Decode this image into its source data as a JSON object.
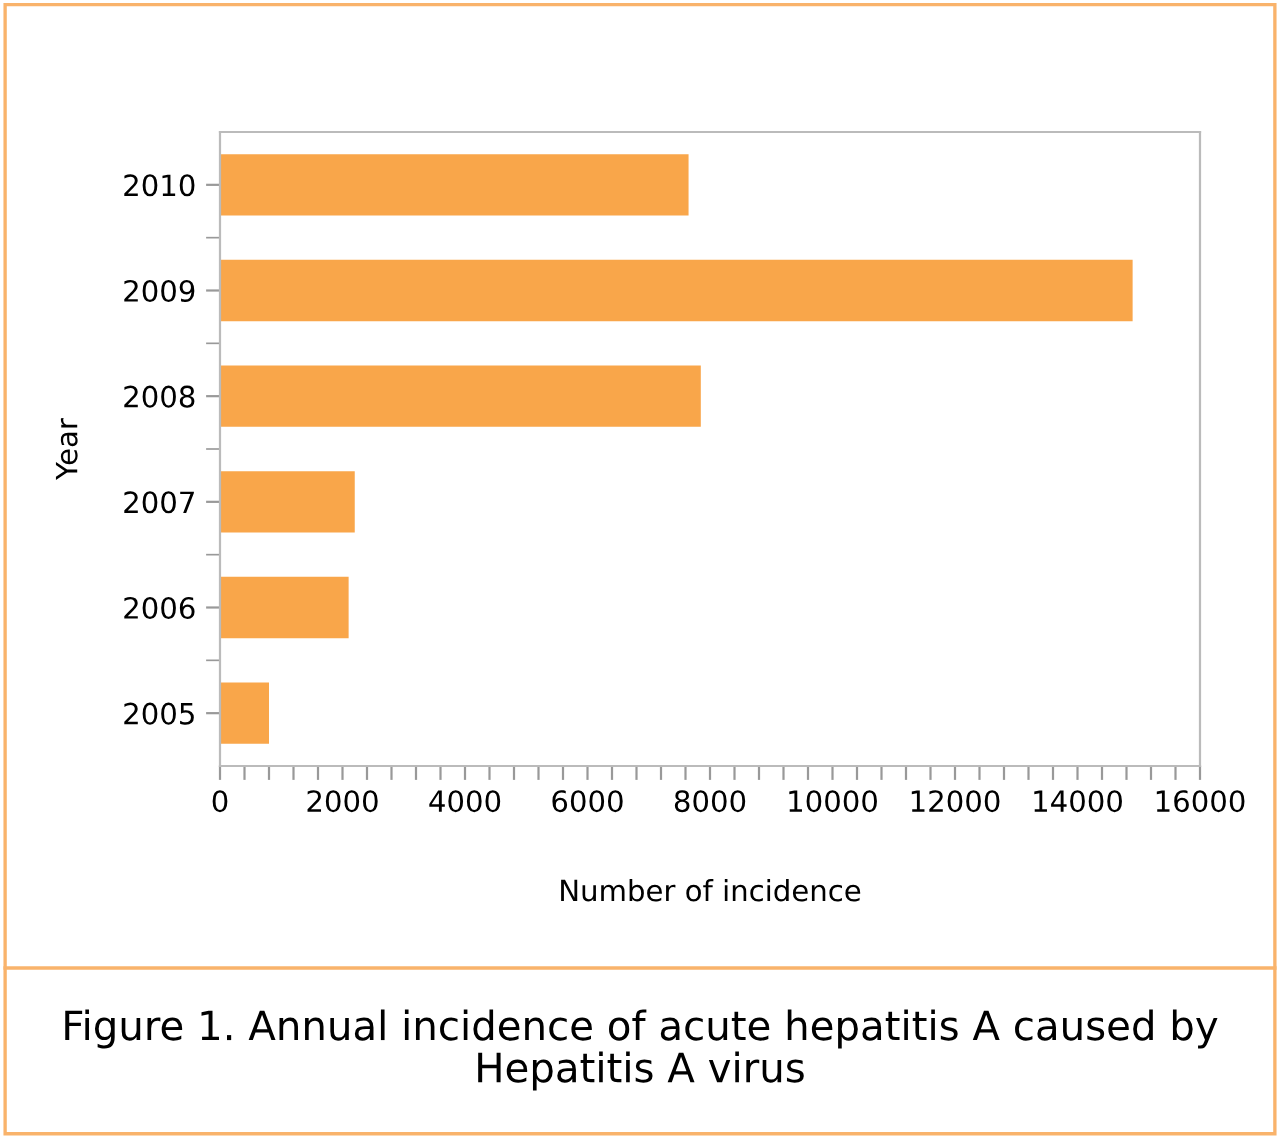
{
  "chart_data": {
    "type": "bar",
    "orientation": "horizontal",
    "title": "Figure 1. Annual incidence of acute hepatitis A caused by\nHepatitis A virus",
    "xlabel": "Number of incidence",
    "ylabel": "Year",
    "categories": [
      "2010",
      "2009",
      "2008",
      "2007",
      "2006",
      "2005"
    ],
    "values": [
      7650,
      14900,
      7850,
      2200,
      2100,
      800
    ],
    "color": "#f9a64a",
    "xlim": [
      0,
      16000
    ],
    "xticks": [
      0,
      {
        "value": 400,
        "label": null
      },
      {
        "value": 800,
        "label": null
      },
      {
        "value": 1200,
        "label": null
      },
      {
        "value": 1600,
        "label": null
      },
      2000,
      {
        "value": 2400,
        "label": null
      },
      {
        "value": 2800,
        "label": null
      },
      {
        "value": 3200,
        "label": null
      },
      {
        "value": 3600,
        "label": null
      },
      4000,
      {
        "value": 4400,
        "label": null
      },
      {
        "value": 4800,
        "label": null
      },
      {
        "value": 5200,
        "label": null
      },
      {
        "value": 5600,
        "label": null
      },
      6000,
      {
        "value": 6400,
        "label": null
      },
      {
        "value": 6800,
        "label": null
      },
      {
        "value": 7200,
        "label": null
      },
      {
        "value": 7600,
        "label": null
      },
      8000,
      {
        "value": 8400,
        "label": null
      },
      {
        "value": 8800,
        "label": null
      },
      {
        "value": 9200,
        "label": null
      },
      {
        "value": 9600,
        "label": null
      },
      10000,
      {
        "value": 10400,
        "label": null
      },
      {
        "value": 10800,
        "label": null
      },
      {
        "value": 11200,
        "label": null
      },
      {
        "value": 11600,
        "label": null
      },
      12000,
      {
        "value": 12400,
        "label": null
      },
      {
        "value": 12800,
        "label": null
      },
      {
        "value": 13200,
        "label": null
      },
      {
        "value": 13600,
        "label": null
      },
      14000,
      {
        "value": 14400,
        "label": null
      },
      {
        "value": 14800,
        "label": null
      },
      {
        "value": 15200,
        "label": null
      },
      {
        "value": 15600,
        "label": null
      },
      16000
    ],
    "grid": false,
    "legend": false
  }
}
